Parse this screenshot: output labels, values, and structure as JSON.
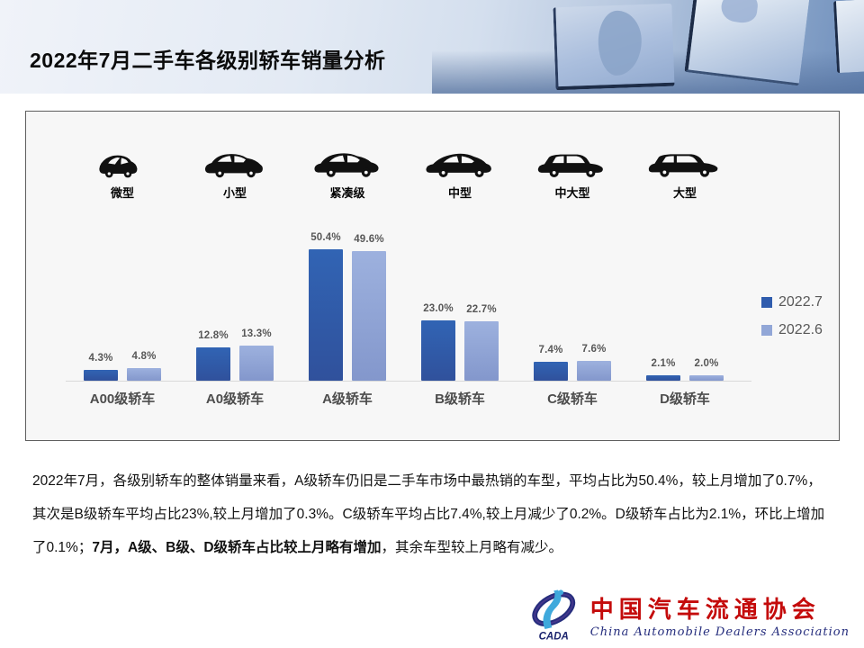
{
  "header": {
    "title": "2022年7月二手车各级别轿车销量分析"
  },
  "chart_data": {
    "type": "bar",
    "title": "2022年7月二手车各级别轿车销量分析",
    "categories": [
      "A00级轿车",
      "A0级轿车",
      "A级轿车",
      "B级轿车",
      "C级轿车",
      "D级轿车"
    ],
    "car_classes": [
      {
        "label": "微型",
        "icon": "micro-car-icon"
      },
      {
        "label": "小型",
        "icon": "small-car-icon"
      },
      {
        "label": "紧凑级",
        "icon": "compact-car-icon"
      },
      {
        "label": "中型",
        "icon": "midsize-car-icon"
      },
      {
        "label": "中大型",
        "icon": "mid-large-car-icon"
      },
      {
        "label": "大型",
        "icon": "large-car-icon"
      }
    ],
    "series": [
      {
        "name": "2022.7",
        "color": "#2f5cad",
        "values": [
          4.3,
          12.8,
          50.4,
          23.0,
          7.4,
          2.1
        ],
        "labels": [
          "4.3%",
          "12.8%",
          "50.4%",
          "23.0%",
          "7.4%",
          "2.1%"
        ]
      },
      {
        "name": "2022.6",
        "color": "#92a7d7",
        "values": [
          4.8,
          13.3,
          49.6,
          22.7,
          7.6,
          2.0
        ],
        "labels": [
          "4.8%",
          "13.3%",
          "49.6%",
          "22.7%",
          "7.6%",
          "2.0%"
        ]
      }
    ],
    "unit": "%",
    "ylim": [
      0,
      55
    ],
    "legend_position": "right",
    "grid": false
  },
  "analysis": {
    "segments": [
      {
        "text": "2022年7月，各级别轿车的整体销量来看，A级轿车仍旧是二手车市场中最热销的车型，平均占比为50.4%，较上月增加了0.7%，其次是B级轿车平均占比23%,较上月增加了0.3%。C级轿车平均占比7.4%,较上月减少了0.2%。D级轿车占比为2.1%，环比上增加了0.1%；",
        "bold": false
      },
      {
        "text": "7月，A级、B级、D级轿车占比较上月略有增加",
        "bold": true
      },
      {
        "text": "，其余车型较上月略有减少。",
        "bold": false
      }
    ]
  },
  "footer": {
    "logo_text": "CADA",
    "org_name_cn": "中国汽车流通协会",
    "org_name_en": "China Automobile Dealers Association"
  }
}
